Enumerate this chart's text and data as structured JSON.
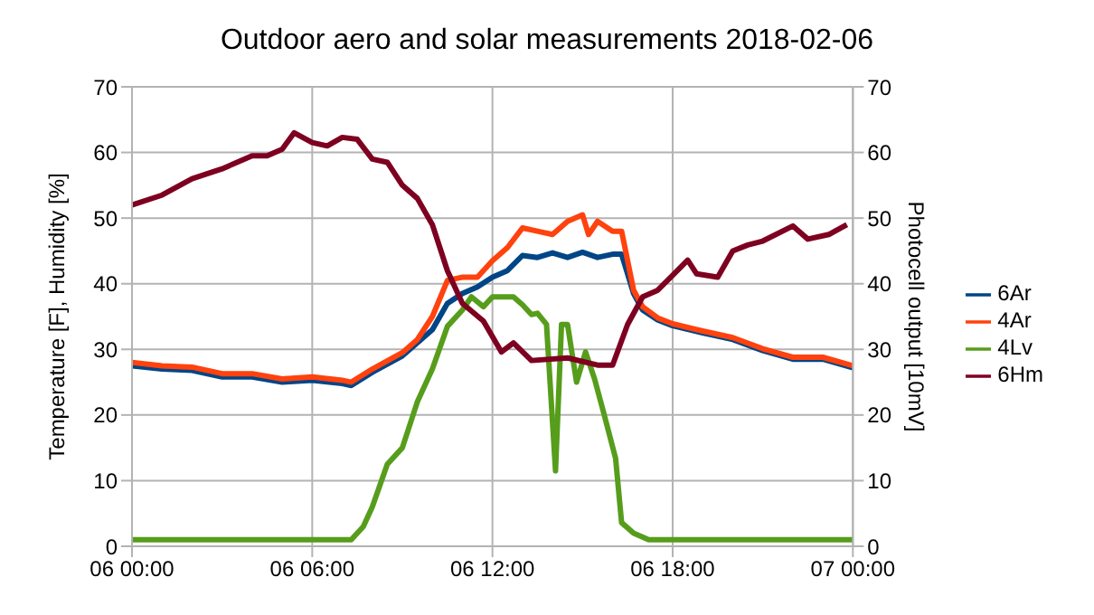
{
  "chart_data": {
    "type": "line",
    "title": "Outdoor aero and solar measurements 2018-02-06",
    "ylabel": "Temperature [F], Humidity [%]",
    "y2label": "Photocell output [10mV]",
    "xlim": [
      "2018-02-06T00:00",
      "2018-02-07T00:00"
    ],
    "xticks": [
      {
        "value": "2018-02-06T00:00",
        "label": "06 00:00"
      },
      {
        "value": "2018-02-06T06:00",
        "label": "06 06:00"
      },
      {
        "value": "2018-02-06T12:00",
        "label": "06 12:00"
      },
      {
        "value": "2018-02-06T18:00",
        "label": "06 18:00"
      },
      {
        "value": "2018-02-07T00:00",
        "label": "07 00:00"
      }
    ],
    "ylim": [
      0,
      70
    ],
    "yticks": [
      0,
      10,
      20,
      30,
      40,
      50,
      60,
      70
    ],
    "y2lim": [
      0,
      70
    ],
    "y2ticks": [
      0,
      10,
      20,
      30,
      40,
      50,
      60,
      70
    ],
    "grid": true,
    "legend": "right",
    "marker": "none",
    "line_style": "solid",
    "series": [
      {
        "name": "6Ar",
        "color": "#004586",
        "x": [
          "2018-02-06T00:00",
          "2018-02-06T01:00",
          "2018-02-06T02:00",
          "2018-02-06T03:00",
          "2018-02-06T04:00",
          "2018-02-06T05:00",
          "2018-02-06T06:00",
          "2018-02-06T07:00",
          "2018-02-06T07:18",
          "2018-02-06T08:00",
          "2018-02-06T09:00",
          "2018-02-06T10:00",
          "2018-02-06T10:30",
          "2018-02-06T11:00",
          "2018-02-06T11:30",
          "2018-02-06T12:00",
          "2018-02-06T12:30",
          "2018-02-06T13:00",
          "2018-02-06T13:30",
          "2018-02-06T14:00",
          "2018-02-06T14:30",
          "2018-02-06T15:00",
          "2018-02-06T15:30",
          "2018-02-06T16:00",
          "2018-02-06T16:18",
          "2018-02-06T16:42",
          "2018-02-06T17:00",
          "2018-02-06T17:30",
          "2018-02-06T18:00",
          "2018-02-06T19:00",
          "2018-02-06T20:00",
          "2018-02-06T21:00",
          "2018-02-06T22:00",
          "2018-02-06T23:00",
          "2018-02-07T00:00"
        ],
        "values": [
          27.5,
          27,
          26.8,
          25.8,
          25.8,
          25,
          25.3,
          24.8,
          24.5,
          26.5,
          29,
          33,
          37,
          38.5,
          39.5,
          41,
          42,
          44.3,
          44,
          44.7,
          44,
          44.8,
          44,
          44.5,
          44.5,
          38.5,
          36,
          34.5,
          33.6,
          32.5,
          31.5,
          29.8,
          28.5,
          28.5,
          27.2
        ]
      },
      {
        "name": "4Ar",
        "color": "#ff420e",
        "x": [
          "2018-02-06T00:00",
          "2018-02-06T01:00",
          "2018-02-06T02:00",
          "2018-02-06T03:00",
          "2018-02-06T04:00",
          "2018-02-06T05:00",
          "2018-02-06T06:00",
          "2018-02-06T07:00",
          "2018-02-06T07:18",
          "2018-02-06T08:00",
          "2018-02-06T09:00",
          "2018-02-06T09:30",
          "2018-02-06T10:00",
          "2018-02-06T10:30",
          "2018-02-06T11:00",
          "2018-02-06T11:30",
          "2018-02-06T12:00",
          "2018-02-06T12:30",
          "2018-02-06T13:00",
          "2018-02-06T13:30",
          "2018-02-06T14:00",
          "2018-02-06T14:30",
          "2018-02-06T15:00",
          "2018-02-06T15:12",
          "2018-02-06T15:30",
          "2018-02-06T16:00",
          "2018-02-06T16:18",
          "2018-02-06T16:42",
          "2018-02-06T17:00",
          "2018-02-06T17:30",
          "2018-02-06T18:00",
          "2018-02-06T19:00",
          "2018-02-06T20:00",
          "2018-02-06T21:00",
          "2018-02-06T22:00",
          "2018-02-06T23:00",
          "2018-02-07T00:00"
        ],
        "values": [
          28,
          27.5,
          27.3,
          26.3,
          26.3,
          25.5,
          25.8,
          25.3,
          25,
          27,
          29.5,
          31.5,
          35,
          40.5,
          41,
          41,
          43.5,
          45.5,
          48.5,
          48,
          47.5,
          49.5,
          50.5,
          47.5,
          49.5,
          48,
          48,
          39,
          36.5,
          34.8,
          33.9,
          32.8,
          31.8,
          30.1,
          28.8,
          28.8,
          27.5
        ]
      },
      {
        "name": "4Lv",
        "color": "#579d1c",
        "axis": "y2",
        "x": [
          "2018-02-06T00:00",
          "2018-02-06T07:18",
          "2018-02-06T07:42",
          "2018-02-06T08:00",
          "2018-02-06T08:30",
          "2018-02-06T09:00",
          "2018-02-06T09:30",
          "2018-02-06T10:00",
          "2018-02-06T10:30",
          "2018-02-06T11:00",
          "2018-02-06T11:18",
          "2018-02-06T11:42",
          "2018-02-06T12:00",
          "2018-02-06T12:42",
          "2018-02-06T13:00",
          "2018-02-06T13:18",
          "2018-02-06T13:30",
          "2018-02-06T13:48",
          "2018-02-06T14:06",
          "2018-02-06T14:18",
          "2018-02-06T14:30",
          "2018-02-06T14:48",
          "2018-02-06T15:06",
          "2018-02-06T15:24",
          "2018-02-06T15:42",
          "2018-02-06T16:06",
          "2018-02-06T16:18",
          "2018-02-06T16:42",
          "2018-02-06T17:12",
          "2018-02-07T00:00"
        ],
        "values": [
          1,
          1,
          3,
          6,
          12.5,
          15,
          22,
          27,
          33.5,
          36,
          38,
          36.5,
          38,
          38,
          36.8,
          35.3,
          35.5,
          33.8,
          11.5,
          33.8,
          33.8,
          25,
          29.6,
          25.5,
          20.4,
          13.4,
          3.6,
          2,
          1,
          1
        ]
      },
      {
        "name": "6Hm",
        "color": "#7e0021",
        "x": [
          "2018-02-06T00:00",
          "2018-02-06T01:00",
          "2018-02-06T02:00",
          "2018-02-06T03:00",
          "2018-02-06T04:00",
          "2018-02-06T04:30",
          "2018-02-06T05:00",
          "2018-02-06T05:24",
          "2018-02-06T06:00",
          "2018-02-06T06:30",
          "2018-02-06T07:00",
          "2018-02-06T07:30",
          "2018-02-06T08:00",
          "2018-02-06T08:30",
          "2018-02-06T09:00",
          "2018-02-06T09:30",
          "2018-02-06T10:00",
          "2018-02-06T10:30",
          "2018-02-06T11:00",
          "2018-02-06T11:42",
          "2018-02-06T12:18",
          "2018-02-06T12:42",
          "2018-02-06T13:18",
          "2018-02-06T14:30",
          "2018-02-06T15:30",
          "2018-02-06T16:00",
          "2018-02-06T16:30",
          "2018-02-06T17:00",
          "2018-02-06T17:30",
          "2018-02-06T18:00",
          "2018-02-06T18:30",
          "2018-02-06T18:48",
          "2018-02-06T19:30",
          "2018-02-06T20:00",
          "2018-02-06T20:30",
          "2018-02-06T21:00",
          "2018-02-06T22:00",
          "2018-02-06T22:30",
          "2018-02-06T23:12",
          "2018-02-06T23:48"
        ],
        "values": [
          52,
          53.5,
          56,
          57.5,
          59.5,
          59.5,
          60.5,
          63,
          61.5,
          61,
          62.3,
          62,
          59,
          58.5,
          55,
          53,
          49,
          42,
          37,
          34.3,
          29.6,
          31,
          28.3,
          28.7,
          27.6,
          27.6,
          33.8,
          38,
          39,
          41.3,
          43.6,
          41.5,
          41,
          45,
          45.9,
          46.5,
          48.8,
          46.8,
          47.5,
          49
        ]
      }
    ]
  }
}
